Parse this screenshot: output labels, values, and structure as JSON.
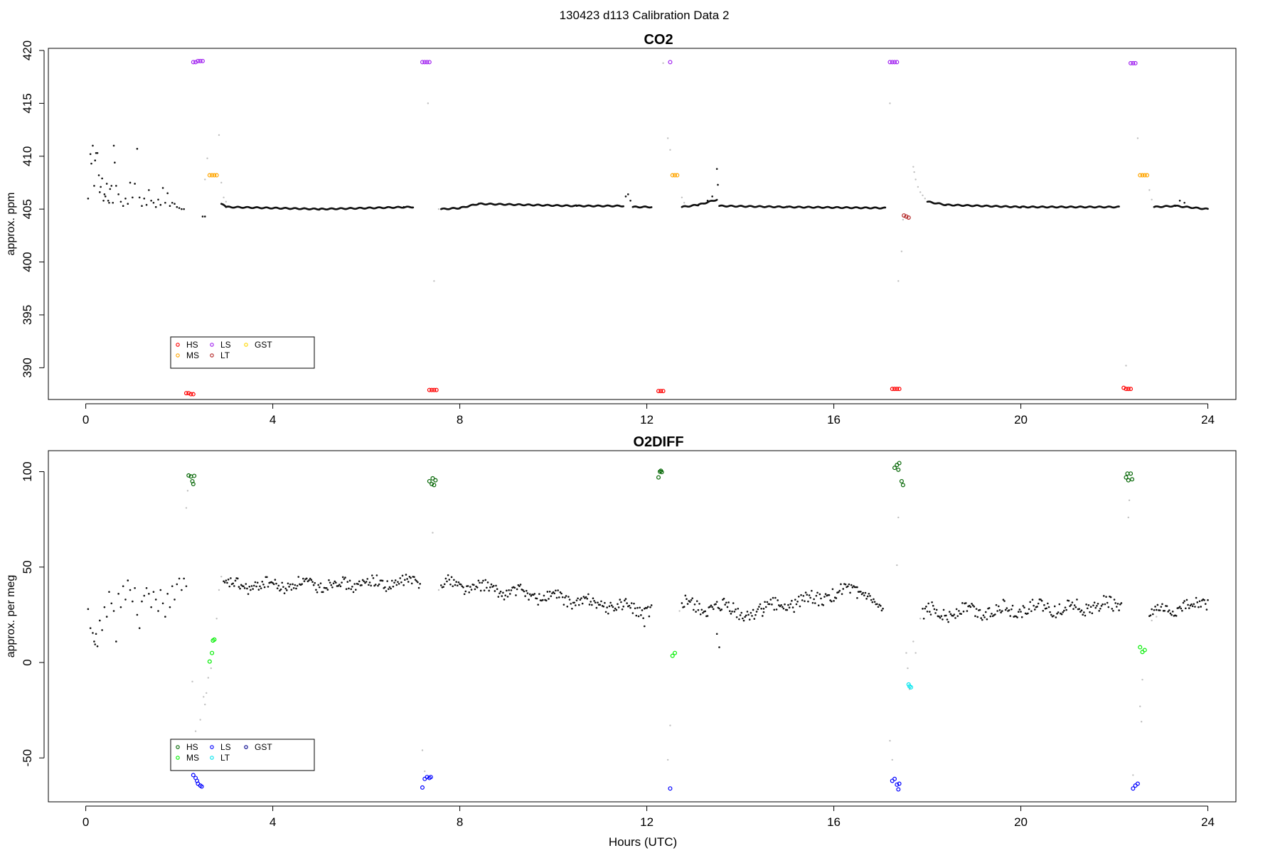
{
  "figure_title": "130423   d113   Calibration Data 2",
  "chart_data": [
    {
      "type": "scatter",
      "title": "CO2",
      "xlabel": "",
      "ylabel": "approx. ppm",
      "xlim": [
        -0.8,
        24.6
      ],
      "ylim": [
        387.0,
        420.2
      ],
      "x_ticks": [
        0,
        4,
        8,
        12,
        16,
        20,
        24
      ],
      "y_ticks": [
        390,
        395,
        400,
        405,
        410,
        415,
        420
      ],
      "legend": {
        "position": "bottom-left",
        "entries": [
          {
            "label": "HS",
            "color": "#ff0000"
          },
          {
            "label": "MS",
            "color": "#ffa500"
          },
          {
            "label": "LS",
            "color": "#a020f0"
          },
          {
            "label": "LT",
            "color": "#b22222"
          },
          {
            "label": "GST",
            "color": "#ffd700"
          }
        ]
      },
      "series": [
        {
          "name": "HS",
          "color": "#ff0000",
          "x": [
            2.15,
            2.2,
            2.25,
            2.3,
            7.35,
            7.4,
            7.45,
            7.5,
            12.25,
            12.3,
            12.35,
            17.25,
            17.3,
            17.35,
            17.4,
            22.2,
            22.25,
            22.3,
            22.35
          ],
          "y": [
            387.6,
            387.6,
            387.5,
            387.5,
            387.9,
            387.9,
            387.9,
            387.9,
            387.8,
            387.8,
            387.8,
            388.0,
            388.0,
            388.0,
            388.0,
            388.1,
            388.0,
            388.0,
            388.0
          ]
        },
        {
          "name": "MS",
          "color": "#ffa500",
          "x": [
            2.65,
            2.7,
            2.75,
            2.8,
            12.55,
            12.6,
            12.65,
            22.55,
            22.6,
            22.65,
            22.7
          ],
          "y": [
            408.2,
            408.2,
            408.2,
            408.2,
            408.2,
            408.2,
            408.2,
            408.2,
            408.2,
            408.2,
            408.2
          ]
        },
        {
          "name": "LS",
          "color": "#a020f0",
          "x": [
            2.3,
            2.35,
            2.4,
            2.45,
            2.5,
            7.2,
            7.25,
            7.3,
            7.35,
            12.5,
            17.2,
            17.25,
            17.3,
            17.35,
            22.35,
            22.4,
            22.45
          ],
          "y": [
            418.9,
            418.9,
            419.0,
            419.0,
            419.0,
            418.9,
            418.9,
            418.9,
            418.9,
            418.9,
            418.9,
            418.9,
            418.9,
            418.9,
            418.8,
            418.8,
            418.8
          ]
        },
        {
          "name": "LT",
          "color": "#b22222",
          "x": [
            17.5,
            17.55,
            17.6
          ],
          "y": [
            404.4,
            404.3,
            404.2
          ]
        }
      ],
      "ambient": [
        [
          0.05,
          406.0
        ],
        [
          0.1,
          410.2
        ],
        [
          0.12,
          409.3
        ],
        [
          0.15,
          411.0
        ],
        [
          0.18,
          407.2
        ],
        [
          0.2,
          409.6
        ],
        [
          0.22,
          410.3
        ],
        [
          0.25,
          410.3
        ],
        [
          0.28,
          408.2
        ],
        [
          0.3,
          406.6
        ],
        [
          0.32,
          407.1
        ],
        [
          0.35,
          407.9
        ],
        [
          0.38,
          405.8
        ],
        [
          0.4,
          406.4
        ],
        [
          0.42,
          406.2
        ],
        [
          0.45,
          407.4
        ],
        [
          0.48,
          405.8
        ],
        [
          0.5,
          405.6
        ],
        [
          0.52,
          406.9
        ],
        [
          0.55,
          407.2
        ],
        [
          0.58,
          405.6
        ],
        [
          0.6,
          411.0
        ],
        [
          0.62,
          409.4
        ],
        [
          0.65,
          407.2
        ],
        [
          0.7,
          406.4
        ],
        [
          0.75,
          405.7
        ],
        [
          0.8,
          405.3
        ],
        [
          0.85,
          406.0
        ],
        [
          0.9,
          405.5
        ],
        [
          0.95,
          407.5
        ],
        [
          1.0,
          406.1
        ],
        [
          1.05,
          407.4
        ],
        [
          1.1,
          410.7
        ],
        [
          1.15,
          406.1
        ],
        [
          1.2,
          405.3
        ],
        [
          1.25,
          406.0
        ],
        [
          1.3,
          405.4
        ],
        [
          1.35,
          406.8
        ],
        [
          1.4,
          405.8
        ],
        [
          1.45,
          405.6
        ],
        [
          1.5,
          405.2
        ],
        [
          1.55,
          405.9
        ],
        [
          1.6,
          405.4
        ],
        [
          1.65,
          407.0
        ],
        [
          1.7,
          405.6
        ],
        [
          1.75,
          406.5
        ],
        [
          1.8,
          405.3
        ],
        [
          1.85,
          405.6
        ],
        [
          1.9,
          405.5
        ],
        [
          1.95,
          405.2
        ],
        [
          2.0,
          405.1
        ],
        [
          2.05,
          405.0
        ],
        [
          2.1,
          405.0
        ],
        [
          2.5,
          404.3
        ],
        [
          2.55,
          404.3
        ],
        [
          6.8,
          405.2
        ],
        [
          11.55,
          406.2
        ],
        [
          11.6,
          406.4
        ],
        [
          11.65,
          405.8
        ],
        [
          13.3,
          405.8
        ],
        [
          13.4,
          406.2
        ],
        [
          13.5,
          408.8
        ],
        [
          13.52,
          407.3
        ],
        [
          23.4,
          405.8
        ],
        [
          23.5,
          405.6
        ]
      ],
      "ambient_segments": [
        [
          2.9,
          3.0,
          405.5,
          405.2
        ],
        [
          3.0,
          5.0,
          405.2,
          405.0
        ],
        [
          5.0,
          7.0,
          405.0,
          405.2
        ],
        [
          7.6,
          8.0,
          405.0,
          405.1
        ],
        [
          8.0,
          8.4,
          405.1,
          405.5
        ],
        [
          8.4,
          10.5,
          405.5,
          405.3
        ],
        [
          10.5,
          11.5,
          405.3,
          405.3
        ],
        [
          11.7,
          12.1,
          405.2,
          405.2
        ],
        [
          12.75,
          13.1,
          405.2,
          405.4
        ],
        [
          13.1,
          13.5,
          405.4,
          405.9
        ],
        [
          13.55,
          15.0,
          405.3,
          405.2
        ],
        [
          15.0,
          17.1,
          405.2,
          405.1
        ],
        [
          18.0,
          18.4,
          405.7,
          405.4
        ],
        [
          18.4,
          20.0,
          405.4,
          405.2
        ],
        [
          20.0,
          22.1,
          405.2,
          405.2
        ],
        [
          22.85,
          23.3,
          405.2,
          405.3
        ],
        [
          23.3,
          24.0,
          405.3,
          405.0
        ]
      ],
      "transition": [
        [
          2.55,
          407.8
        ],
        [
          2.6,
          409.8
        ],
        [
          2.85,
          412.0
        ],
        [
          2.9,
          407.5
        ],
        [
          2.95,
          406.1
        ],
        [
          3.0,
          405.7
        ],
        [
          7.55,
          405.0
        ],
        [
          7.32,
          415.0
        ],
        [
          7.45,
          398.2
        ],
        [
          12.35,
          418.8
        ],
        [
          12.45,
          411.7
        ],
        [
          12.5,
          410.6
        ],
        [
          12.75,
          406.1
        ],
        [
          12.8,
          405.6
        ],
        [
          17.2,
          415.0
        ],
        [
          17.38,
          398.2
        ],
        [
          17.45,
          401.0
        ],
        [
          17.48,
          404.0
        ],
        [
          17.7,
          409.0
        ],
        [
          17.72,
          408.5
        ],
        [
          17.75,
          407.8
        ],
        [
          17.8,
          407.1
        ],
        [
          17.85,
          406.6
        ],
        [
          17.9,
          406.3
        ],
        [
          17.95,
          406.0
        ],
        [
          22.25,
          390.2
        ],
        [
          22.5,
          411.7
        ],
        [
          22.75,
          406.8
        ],
        [
          22.8,
          405.9
        ],
        [
          22.85,
          405.2
        ]
      ]
    },
    {
      "type": "scatter",
      "title": "O2DIFF",
      "xlabel": "Hours (UTC)",
      "ylabel": "approx. per meg",
      "xlim": [
        -0.8,
        24.6
      ],
      "ylim": [
        -73,
        111
      ],
      "x_ticks": [
        0,
        4,
        8,
        12,
        16,
        20,
        24
      ],
      "y_ticks": [
        -50,
        0,
        50,
        100
      ],
      "legend": {
        "position": "bottom-left",
        "entries": [
          {
            "label": "HS",
            "color": "#006400"
          },
          {
            "label": "MS",
            "color": "#00ee00"
          },
          {
            "label": "LS",
            "color": "#0000ff"
          },
          {
            "label": "LT",
            "color": "#00e5ee"
          },
          {
            "label": "GST",
            "color": "#00008b"
          }
        ]
      },
      "series": [
        {
          "name": "HS",
          "color": "#006400",
          "x": [
            2.2,
            2.25,
            2.28,
            2.3,
            2.32,
            7.35,
            7.4,
            7.42,
            7.45,
            7.48,
            12.25,
            12.28,
            12.3,
            12.32,
            17.3,
            17.35,
            17.38,
            17.4,
            17.45,
            17.48,
            22.25,
            22.28,
            22.3,
            22.35,
            22.38
          ],
          "y": [
            98.0,
            97.5,
            95.0,
            93.5,
            97.8,
            95.0,
            93.5,
            96.5,
            93.0,
            95.5,
            97.0,
            100.0,
            100.5,
            99.8,
            102.0,
            103.5,
            101.0,
            104.5,
            95.0,
            93.0,
            97.0,
            99.0,
            95.5,
            99.0,
            96.0
          ]
        },
        {
          "name": "MS",
          "color": "#00ee00",
          "x": [
            2.65,
            2.7,
            2.72,
            2.75,
            12.55,
            12.6,
            22.55,
            22.6,
            22.65
          ],
          "y": [
            0.5,
            5.0,
            11.5,
            12.0,
            3.5,
            5.0,
            8.0,
            5.5,
            6.5
          ]
        },
        {
          "name": "LS",
          "color": "#0000ff",
          "x": [
            2.3,
            2.35,
            2.38,
            2.4,
            2.45,
            2.48,
            7.2,
            7.25,
            7.3,
            7.35,
            7.38,
            12.5,
            17.25,
            17.3,
            17.35,
            17.38,
            17.4,
            22.4,
            22.45,
            22.5
          ],
          "y": [
            -59.0,
            -60.5,
            -62.0,
            -63.5,
            -64.5,
            -65.0,
            -65.5,
            -61.0,
            -60.0,
            -60.5,
            -60.0,
            -66.0,
            -62.0,
            -61.0,
            -64.0,
            -66.5,
            -63.5,
            -66.0,
            -64.5,
            -63.5
          ]
        },
        {
          "name": "LT",
          "color": "#00e5ee",
          "x": [
            17.6,
            17.62,
            17.65
          ],
          "y": [
            -11.5,
            -12.5,
            -13.0
          ]
        }
      ],
      "ambient": [
        [
          0.05,
          28.0
        ],
        [
          0.1,
          18.0
        ],
        [
          0.15,
          15.5
        ],
        [
          0.18,
          11.0
        ],
        [
          0.2,
          9.5
        ],
        [
          0.22,
          15.0
        ],
        [
          0.25,
          8.5
        ],
        [
          0.3,
          22.0
        ],
        [
          0.35,
          17.0
        ],
        [
          0.4,
          29.0
        ],
        [
          0.45,
          24.0
        ],
        [
          0.5,
          37.0
        ],
        [
          0.55,
          31.0
        ],
        [
          0.6,
          27.0
        ],
        [
          0.65,
          11.0
        ],
        [
          0.7,
          36.0
        ],
        [
          0.75,
          29.0
        ],
        [
          0.8,
          40.0
        ],
        [
          0.85,
          33.0
        ],
        [
          0.9,
          43.0
        ],
        [
          0.95,
          38.0
        ],
        [
          1.0,
          32.0
        ],
        [
          1.05,
          39.0
        ],
        [
          1.1,
          25.0
        ],
        [
          1.15,
          18.0
        ],
        [
          1.2,
          32.0
        ],
        [
          1.25,
          35.0
        ],
        [
          1.3,
          39.0
        ],
        [
          1.35,
          36.0
        ],
        [
          1.4,
          29.0
        ],
        [
          1.45,
          37.0
        ],
        [
          1.5,
          33.0
        ],
        [
          1.55,
          27.0
        ],
        [
          1.6,
          38.0
        ],
        [
          1.65,
          31.0
        ],
        [
          1.7,
          24.0
        ],
        [
          1.75,
          36.0
        ],
        [
          1.8,
          29.0
        ],
        [
          1.85,
          40.0
        ],
        [
          1.9,
          33.0
        ],
        [
          1.95,
          41.0
        ],
        [
          2.0,
          44.0
        ],
        [
          2.05,
          38.0
        ],
        [
          2.1,
          44.0
        ],
        [
          2.15,
          40.0
        ],
        [
          13.55,
          8.0
        ],
        [
          13.5,
          15.0
        ],
        [
          11.95,
          19.0
        ]
      ],
      "ambient_trends": [
        [
          2.95,
          7.15,
          40.0,
          42.0,
          6.0
        ],
        [
          7.6,
          12.1,
          42.0,
          27.0,
          6.0
        ],
        [
          12.75,
          14.5,
          30.0,
          25.0,
          8.0
        ],
        [
          14.5,
          16.5,
          28.0,
          38.0,
          7.0
        ],
        [
          16.5,
          17.05,
          36.0,
          28.0,
          5.0
        ],
        [
          17.9,
          22.15,
          26.0,
          30.0,
          7.0
        ],
        [
          22.75,
          24.0,
          25.0,
          32.0,
          6.0
        ]
      ],
      "transition": [
        [
          2.15,
          81.0
        ],
        [
          2.18,
          90.0
        ],
        [
          2.28,
          -10.0
        ],
        [
          2.35,
          -36.0
        ],
        [
          2.45,
          -30.0
        ],
        [
          2.52,
          -18.0
        ],
        [
          2.55,
          -22.0
        ],
        [
          2.58,
          -16.0
        ],
        [
          2.62,
          -8.0
        ],
        [
          2.68,
          -3.0
        ],
        [
          2.8,
          23.0
        ],
        [
          2.85,
          38.0
        ],
        [
          2.9,
          45.0
        ],
        [
          7.2,
          -46.0
        ],
        [
          7.25,
          -57.0
        ],
        [
          7.42,
          68.0
        ],
        [
          7.55,
          38.0
        ],
        [
          12.45,
          -51.0
        ],
        [
          12.5,
          -33.0
        ],
        [
          12.7,
          27.0
        ],
        [
          17.2,
          -41.0
        ],
        [
          17.25,
          -51.0
        ],
        [
          17.38,
          76.0
        ],
        [
          17.35,
          51.0
        ],
        [
          17.55,
          5.0
        ],
        [
          17.58,
          -3.0
        ],
        [
          17.62,
          -14.0
        ],
        [
          17.7,
          11.0
        ],
        [
          17.75,
          5.0
        ],
        [
          17.85,
          23.0
        ],
        [
          17.9,
          28.0
        ],
        [
          22.3,
          76.0
        ],
        [
          22.32,
          85.0
        ],
        [
          22.4,
          -59.0
        ],
        [
          22.55,
          -23.0
        ],
        [
          22.58,
          -31.0
        ],
        [
          22.6,
          -9.0
        ],
        [
          22.8,
          22.0
        ],
        [
          22.9,
          24.0
        ]
      ]
    }
  ]
}
